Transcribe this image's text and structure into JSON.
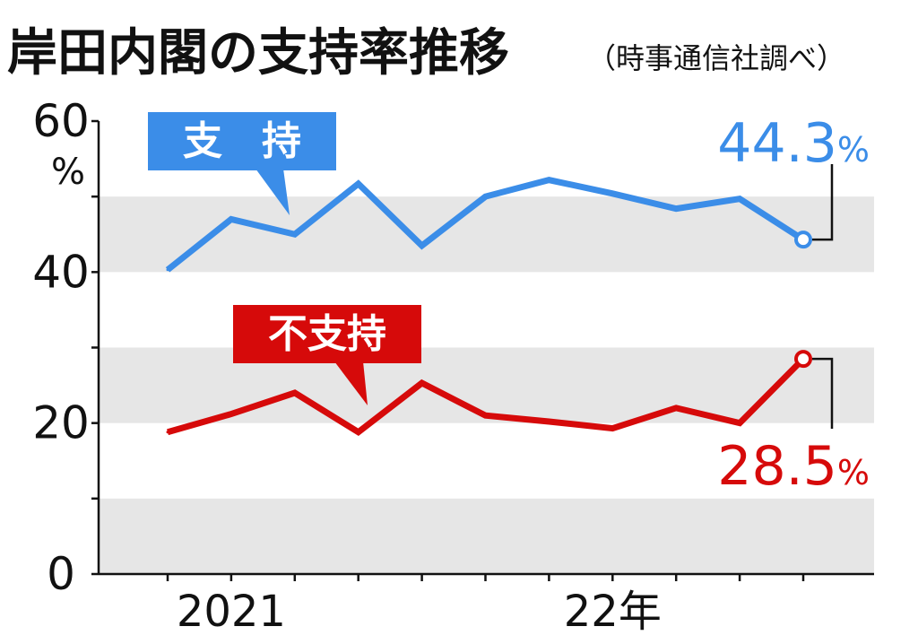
{
  "title": "岸田内閣の支持率推移",
  "subtitle": "（時事通信社調べ）",
  "colors": {
    "support": "#3b8de8",
    "nonsupport": "#d60a0a",
    "band": "#e6e6e6",
    "axis": "#111111"
  },
  "chart_data": {
    "type": "line",
    "title": "岸田内閣の支持率推移",
    "subtitle": "（時事通信社調べ）",
    "ylabel": "%",
    "ylim": [
      0,
      60
    ],
    "yticks": [
      0,
      20,
      40,
      60
    ],
    "x_tick_labels": [
      {
        "index": 1,
        "label": "2021"
      },
      {
        "index": 7,
        "label": "22年"
      }
    ],
    "grid": "alternating horizontal bands every 10",
    "series": [
      {
        "name": "支　持",
        "color": "#3b8de8",
        "values": [
          40.3,
          47.0,
          45.0,
          51.7,
          43.5,
          50.0,
          52.2,
          50.4,
          48.4,
          49.7,
          44.3
        ],
        "end_label": "44.3"
      },
      {
        "name": "不支持",
        "color": "#d60a0a",
        "values": [
          18.8,
          21.2,
          24.0,
          18.8,
          25.3,
          21.0,
          20.2,
          19.3,
          22.0,
          20.0,
          28.5
        ],
        "end_label": "28.5"
      }
    ],
    "value_unit": "%"
  }
}
